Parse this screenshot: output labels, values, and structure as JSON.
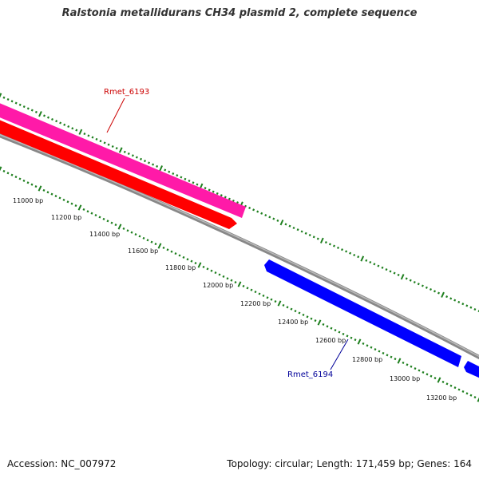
{
  "title": "Ralstonia metallidurans CH34 plasmid 2, complete sequence",
  "footer": {
    "accession": "Accession: NC_007972",
    "topology": "Topology: circular; Length: 171,459 bp; Genes: 164"
  },
  "colors": {
    "backbone": "#888888",
    "tick": "#1e7f1e",
    "gene_plus_outer": "#ff1aa8",
    "gene_plus_inner": "#ff0000",
    "gene_minus": "#0000ff",
    "label_plus": "#cc0000",
    "label_minus": "#000099"
  },
  "scale": {
    "labels": [
      "11000 bp",
      "11200 bp",
      "11400 bp",
      "11600 bp",
      "11800 bp",
      "12000 bp",
      "12200 bp",
      "12400 bp",
      "12600 bp",
      "12800 bp",
      "13000 bp",
      "13200 bp"
    ]
  },
  "genes": [
    {
      "name": "Rmet_6193",
      "strand": "+"
    },
    {
      "name": "Rmet_6194",
      "strand": "-"
    }
  ]
}
